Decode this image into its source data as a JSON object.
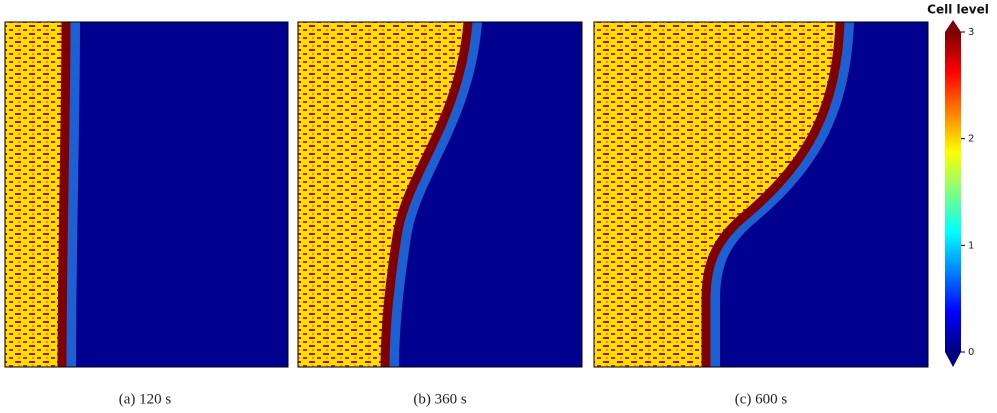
{
  "chart_data": {
    "type": "heatmap",
    "panels": [
      {
        "caption": "(a) 120 s"
      },
      {
        "caption": "(b) 360 s"
      },
      {
        "caption": "(c) 600 s"
      }
    ],
    "colorbar": {
      "label": "Cell level",
      "lim": [
        0,
        3
      ],
      "ticks": [
        0,
        1,
        2,
        3
      ]
    }
  }
}
